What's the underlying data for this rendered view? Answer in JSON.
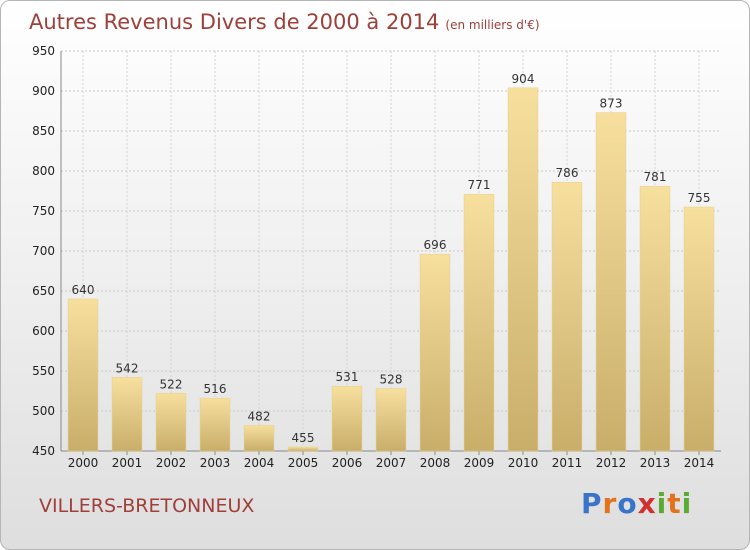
{
  "title": "Autres Revenus Divers de 2000 à 2014",
  "unit": "(en milliers d'€)",
  "location": "VILLERS-BRETONNEUX",
  "logo": {
    "letters": [
      "P",
      "r",
      "o",
      "x",
      "i",
      "t",
      "i"
    ],
    "colors": [
      "#3a74c8",
      "#e2731c",
      "#3a74c8",
      "#d03030",
      "#5aab32",
      "#e2731c",
      "#5aab32"
    ]
  },
  "colors": {
    "title": "#9e3f3a",
    "bar_light": "#f7df9e",
    "bar_dark": "#c9ae6a"
  },
  "chart_data": {
    "type": "bar",
    "categories": [
      "2000",
      "2001",
      "2002",
      "2003",
      "2004",
      "2005",
      "2006",
      "2007",
      "2008",
      "2009",
      "2010",
      "2011",
      "2012",
      "2013",
      "2014"
    ],
    "values": [
      640,
      542,
      522,
      516,
      482,
      455,
      531,
      528,
      696,
      771,
      904,
      786,
      873,
      781,
      755
    ],
    "yticks": [
      450,
      500,
      550,
      600,
      650,
      700,
      750,
      800,
      850,
      900,
      950
    ],
    "ylim": [
      450,
      950
    ],
    "grid": true
  }
}
